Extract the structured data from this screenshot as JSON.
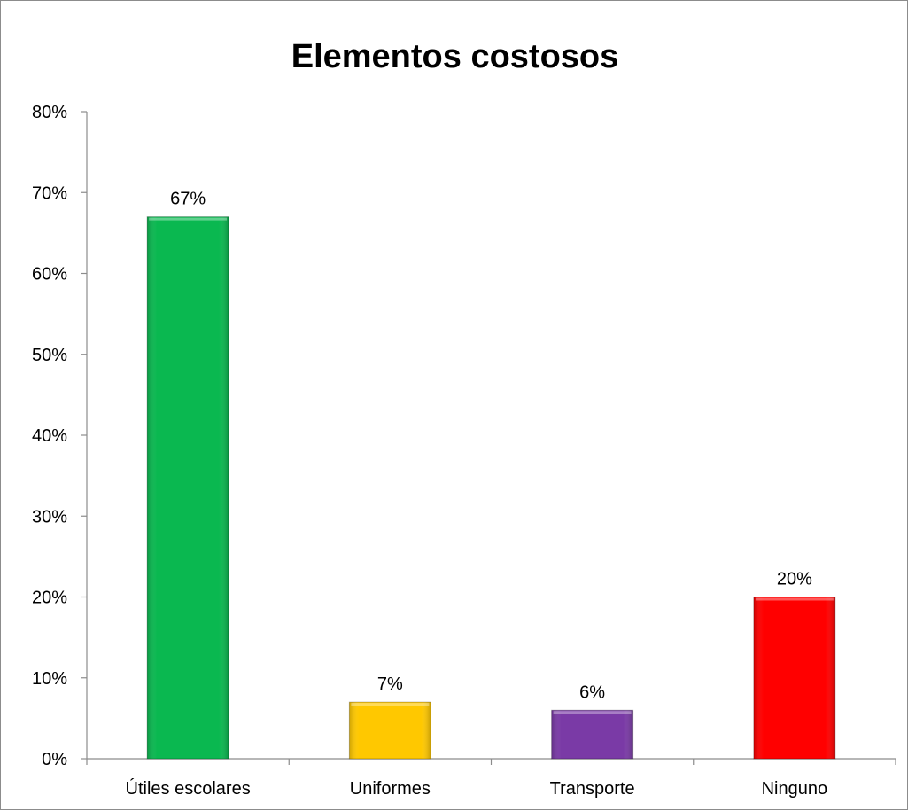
{
  "chart_data": {
    "type": "bar",
    "title": "Elementos costosos",
    "xlabel": "",
    "ylabel": "",
    "categories": [
      "Útiles escolares",
      "Uniformes",
      "Transporte",
      "Ninguno"
    ],
    "values": [
      67,
      7,
      6,
      20
    ],
    "value_labels": [
      "67%",
      "7%",
      "6%",
      "20%"
    ],
    "ylim": [
      0,
      80
    ],
    "yticks": [
      0,
      10,
      20,
      30,
      40,
      50,
      60,
      70,
      80
    ],
    "ytick_labels": [
      "0%",
      "10%",
      "20%",
      "30%",
      "40%",
      "50%",
      "60%",
      "70%",
      "80%"
    ],
    "colors": [
      "#0ab850",
      "#ffc800",
      "#7a3aa6",
      "#ff0000"
    ],
    "grid": false,
    "legend": "none"
  }
}
